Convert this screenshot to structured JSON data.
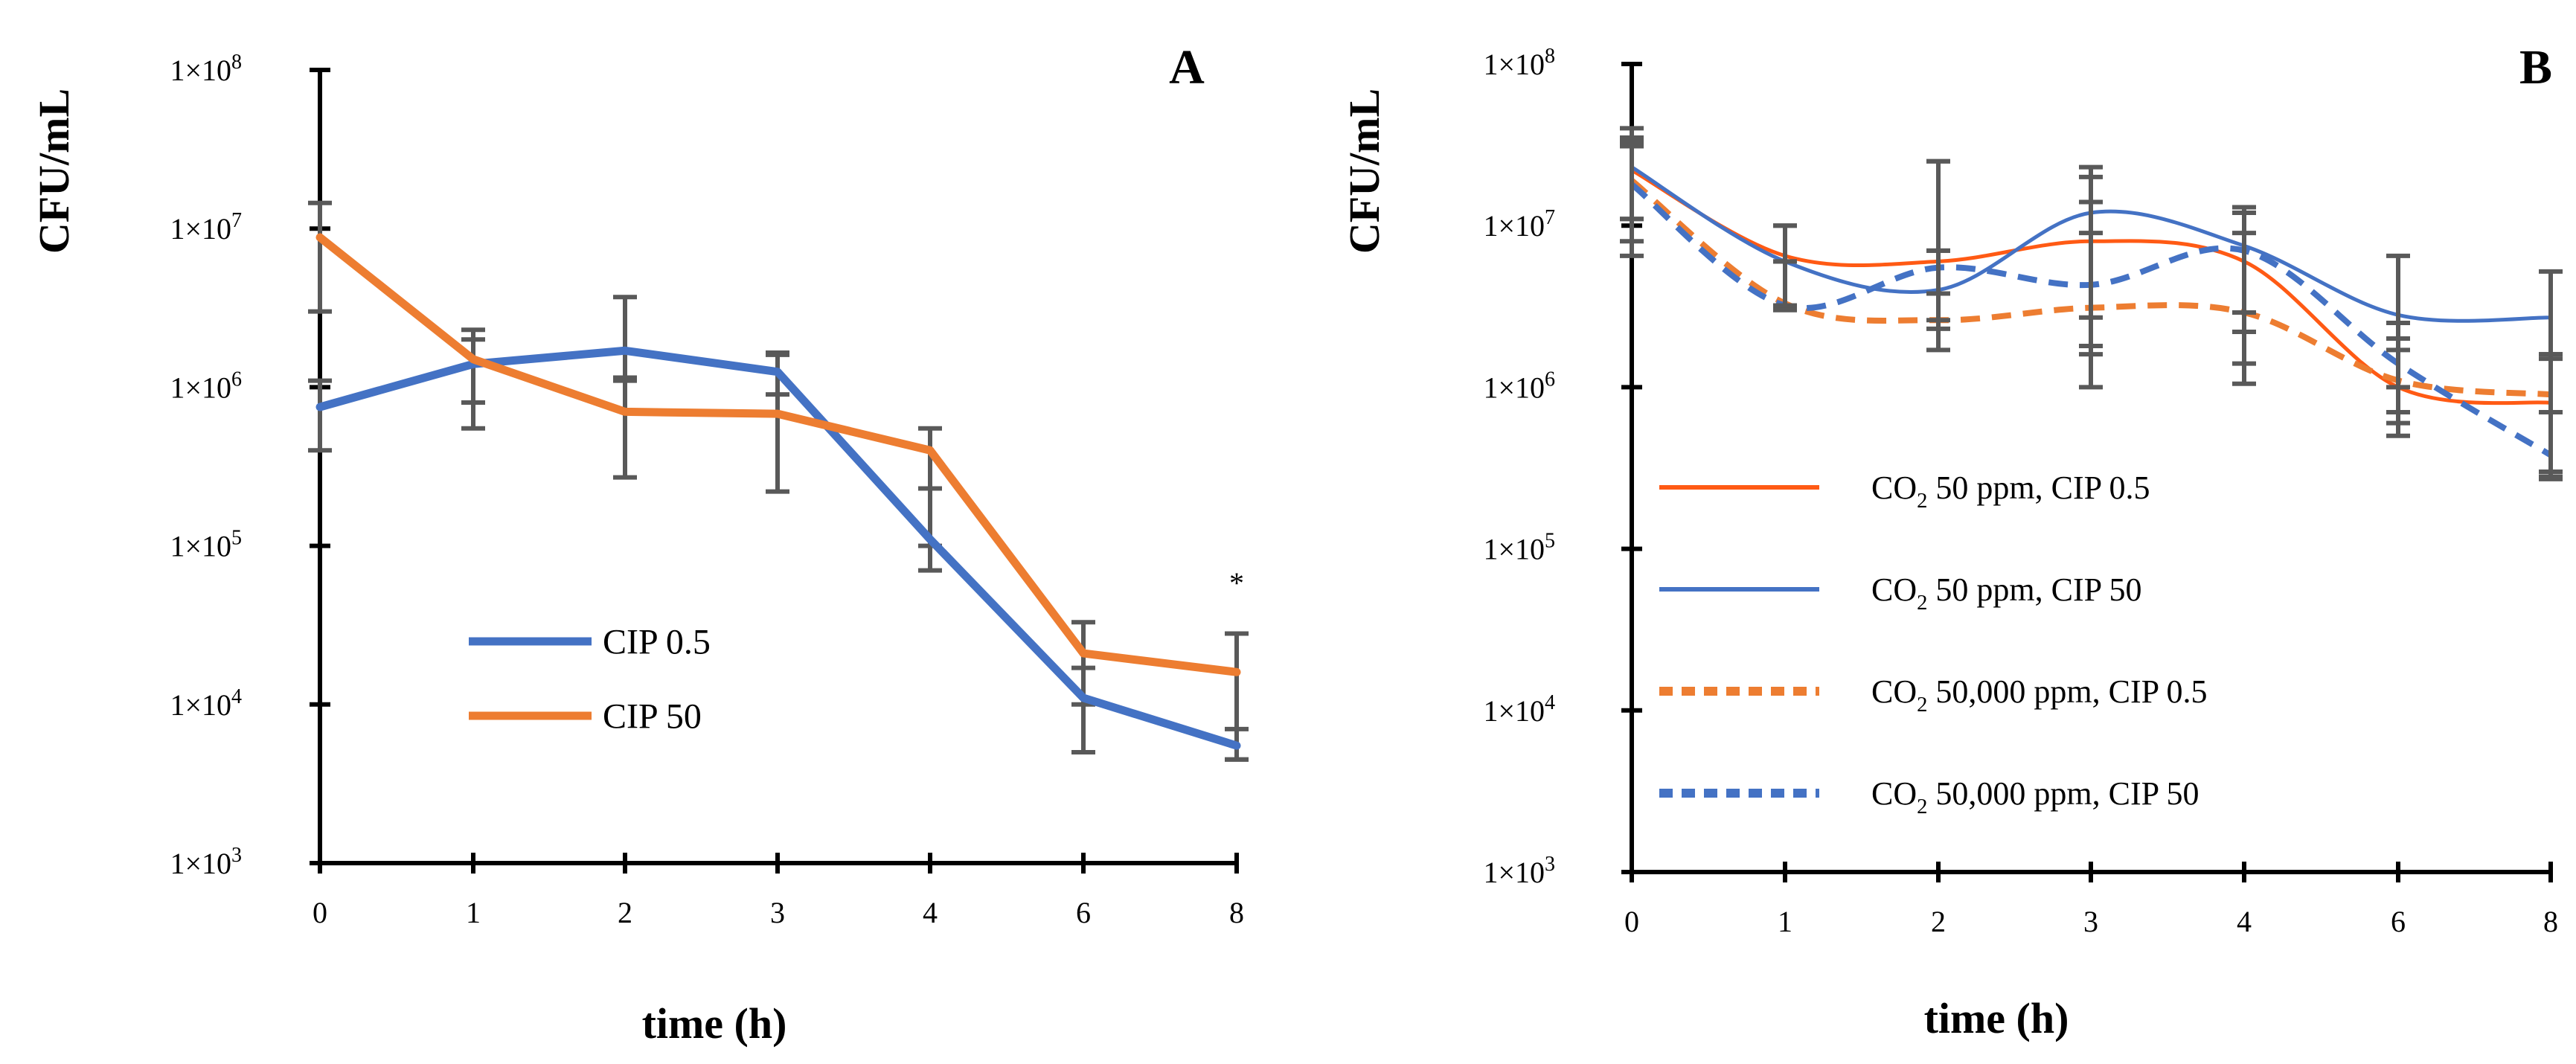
{
  "chart_data": [
    {
      "panel": "A",
      "type": "line",
      "scale": "log",
      "x_categories": [
        "0",
        "1",
        "2",
        "3",
        "4",
        "6",
        "8"
      ],
      "xlabel": "time (h)",
      "ylabel": "CFU/mL",
      "y_tick_labels": [
        {
          "base": "1×10",
          "exp": "3"
        },
        {
          "base": "1×10",
          "exp": "4"
        },
        {
          "base": "1×10",
          "exp": "5"
        },
        {
          "base": "1×10",
          "exp": "6"
        },
        {
          "base": "1×10",
          "exp": "7"
        },
        {
          "base": "1×10",
          "exp": "8"
        }
      ],
      "ylim_log10": [
        3,
        8
      ],
      "series": [
        {
          "name": "CIP 0.5",
          "color": "#4472C4",
          "dash": false,
          "smooth": false,
          "values": [
            750000,
            1400000,
            1700000,
            1250000,
            110000,
            11000,
            5500
          ],
          "err_low": [
            400000,
            550000,
            1100000,
            900000,
            70000,
            5000,
            4500
          ],
          "err_high": [
            1100000,
            2300000,
            3700000,
            1650000,
            230000,
            17000,
            7000
          ]
        },
        {
          "name": "CIP 50",
          "color": "#ED7D31",
          "dash": false,
          "smooth": false,
          "values": [
            8800000,
            1500000,
            700000,
            680000,
            400000,
            21000,
            16000
          ],
          "err_low": [
            3000000,
            800000,
            270000,
            220000,
            100000,
            10000,
            4500
          ],
          "err_high": [
            14500000,
            2000000,
            1150000,
            1600000,
            550000,
            33000,
            28000
          ]
        }
      ],
      "annotation": {
        "text": "*",
        "x": "8",
        "y": 60000
      },
      "legend": "center-left"
    },
    {
      "panel": "B",
      "type": "line",
      "scale": "log",
      "x_categories": [
        "0",
        "1",
        "2",
        "3",
        "4",
        "6",
        "8"
      ],
      "xlabel": "time (h)",
      "ylabel": "CFU/mL",
      "y_tick_labels": [
        {
          "base": "1×10",
          "exp": "3"
        },
        {
          "base": "1×10",
          "exp": "4"
        },
        {
          "base": "1×10",
          "exp": "5"
        },
        {
          "base": "1×10",
          "exp": "6"
        },
        {
          "base": "1×10",
          "exp": "7"
        },
        {
          "base": "1×10",
          "exp": "8"
        }
      ],
      "ylim_log10": [
        3,
        8
      ],
      "series": [
        {
          "name": "CO2 50 ppm, CIP 0.5",
          "label_parts": {
            "pre": "CO",
            "sub": "2",
            "post": " 50 ppm, CIP 0.5"
          },
          "color": "#FF5A14",
          "dash": false,
          "smooth": true,
          "values": [
            22000000,
            6500000,
            6000000,
            8000000,
            6000000,
            1000000,
            800000
          ],
          "err_low": [
            11000000,
            3200000,
            2600000,
            1600000,
            2900000,
            500000,
            270000
          ],
          "err_high": [
            33000000,
            10000000,
            25000000,
            14000000,
            13000000,
            2000000,
            1600000
          ]
        },
        {
          "name": "CO2 50 ppm, CIP 50",
          "label_parts": {
            "pre": "CO",
            "sub": "2",
            "post": " 50 ppm, CIP 50"
          },
          "color": "#4472C4",
          "dash": false,
          "smooth": true,
          "values": [
            23000000,
            6000000,
            4000000,
            12000000,
            7500000,
            2800000,
            2700000
          ],
          "err_low": [
            11000000,
            3200000,
            1700000,
            1000000,
            1400000,
            1000000,
            1600000
          ],
          "err_high": [
            35000000,
            10000000,
            25000000,
            23000000,
            12000000,
            6500000,
            5200000
          ]
        },
        {
          "name": "CO2 50,000 ppm, CIP 0.5",
          "label_parts": {
            "pre": "CO",
            "sub": "2",
            "post": " 50,000 ppm, CIP 0.5"
          },
          "color": "#ED7D31",
          "dash": true,
          "smooth": true,
          "values": [
            19000000,
            3300000,
            2600000,
            3100000,
            2900000,
            1100000,
            900000
          ],
          "err_low": [
            8000000,
            3100000,
            2300000,
            1800000,
            1050000,
            700000,
            300000
          ],
          "err_high": [
            31000000,
            6000000,
            7000000,
            9000000,
            9000000,
            1700000,
            1500000
          ]
        },
        {
          "name": "CO2 50,000 ppm, CIP 50",
          "label_parts": {
            "pre": "CO",
            "sub": "2",
            "post": " 50,000 ppm, CIP 50"
          },
          "color": "#4472C4",
          "dash": true,
          "smooth": true,
          "values": [
            18000000,
            3200000,
            5500000,
            4300000,
            7000000,
            1400000,
            380000
          ],
          "err_low": [
            6500000,
            3000000,
            3800000,
            2700000,
            2200000,
            600000,
            280000
          ],
          "err_high": [
            40000000,
            6000000,
            7000000,
            20000000,
            12000000,
            2500000,
            700000
          ]
        }
      ],
      "legend": "center-left"
    }
  ]
}
